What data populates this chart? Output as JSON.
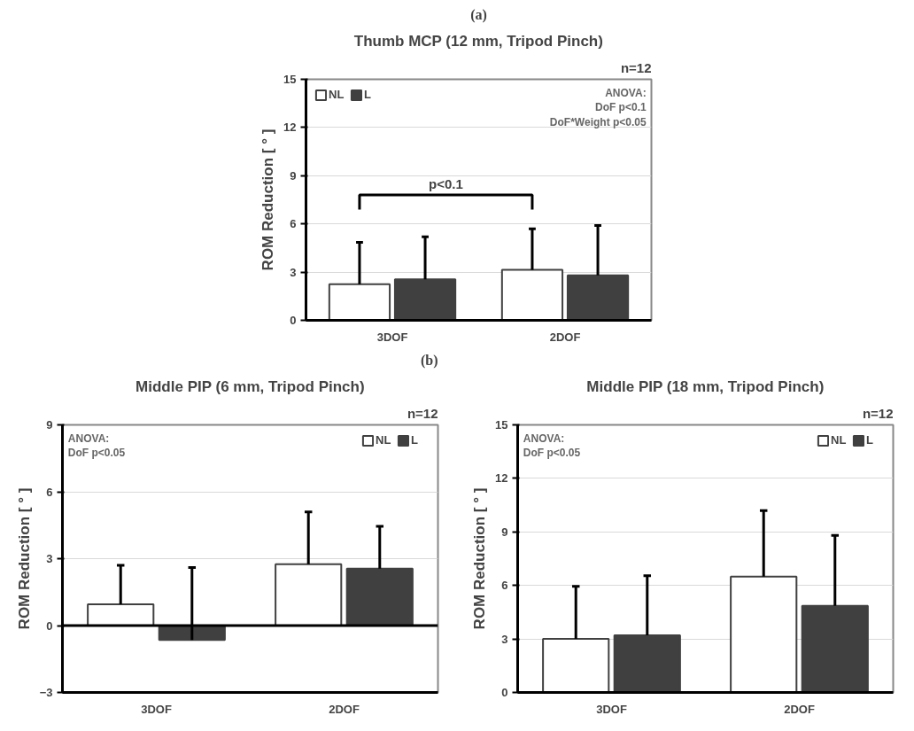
{
  "chart_data": [
    {
      "type": "bar",
      "title": "(a)",
      "subtitle": "Thumb MCP (12 mm, Tripod Pinch)",
      "ylabel": "ROM Reduction [ ° ]",
      "categories": [
        "3DOF",
        "2DOF"
      ],
      "ylim": [
        0,
        15
      ],
      "yticks": [
        0,
        3,
        6,
        9,
        12,
        15
      ],
      "grid": "y",
      "legend": "top left",
      "series": [
        {
          "name": "NL",
          "color": "#ffffff",
          "values": [
            2.25,
            3.15
          ],
          "errors": [
            [
              2.25,
              4.85
            ],
            [
              3.15,
              5.7
            ]
          ]
        },
        {
          "name": "L",
          "color": "#404040",
          "values": [
            2.55,
            2.8
          ],
          "errors": [
            [
              2.55,
              5.2
            ],
            [
              2.8,
              5.9
            ]
          ]
        }
      ],
      "annotations": [
        "n=12",
        "ANOVA:\nDoF p<0.1\nDoF*Weight p<0.05",
        "p<0.1"
      ]
    },
    {
      "type": "bar",
      "title": "(b)",
      "subtitle": "Middle PIP (6 mm, Tripod Pinch)",
      "ylabel": "ROM Reduction [ ° ]",
      "categories": [
        "3DOF",
        "2DOF"
      ],
      "ylim": [
        -3,
        9
      ],
      "yticks": [
        -3,
        0,
        3,
        6,
        9
      ],
      "grid": "y",
      "legend": "top right",
      "series": [
        {
          "name": "NL",
          "color": "#ffffff",
          "values": [
            0.95,
            2.75
          ],
          "errors": [
            [
              0.95,
              2.7
            ],
            [
              2.75,
              5.1
            ]
          ]
        },
        {
          "name": "L",
          "color": "#404040",
          "values": [
            -0.65,
            2.55
          ],
          "errors": [
            [
              -0.65,
              2.6
            ],
            [
              2.55,
              4.45
            ]
          ]
        }
      ],
      "annotations": [
        "n=12",
        "ANOVA:\nDoF p<0.05"
      ]
    },
    {
      "type": "bar",
      "subtitle": "Middle PIP (18 mm, Tripod Pinch)",
      "ylabel": "ROM Reduction [ ° ]",
      "categories": [
        "3DOF",
        "2DOF"
      ],
      "ylim": [
        0,
        15
      ],
      "yticks": [
        0,
        3,
        6,
        9,
        12,
        15
      ],
      "grid": "y",
      "legend": "top right",
      "series": [
        {
          "name": "NL",
          "color": "#ffffff",
          "values": [
            3.0,
            6.5
          ],
          "errors": [
            [
              3.0,
              5.95
            ],
            [
              6.5,
              10.2
            ]
          ]
        },
        {
          "name": "L",
          "color": "#404040",
          "values": [
            3.2,
            4.85
          ],
          "errors": [
            [
              3.2,
              6.55
            ],
            [
              4.85,
              8.8
            ]
          ]
        }
      ],
      "annotations": [
        "n=12",
        "ANOVA:\nDoF p<0.05"
      ]
    }
  ]
}
